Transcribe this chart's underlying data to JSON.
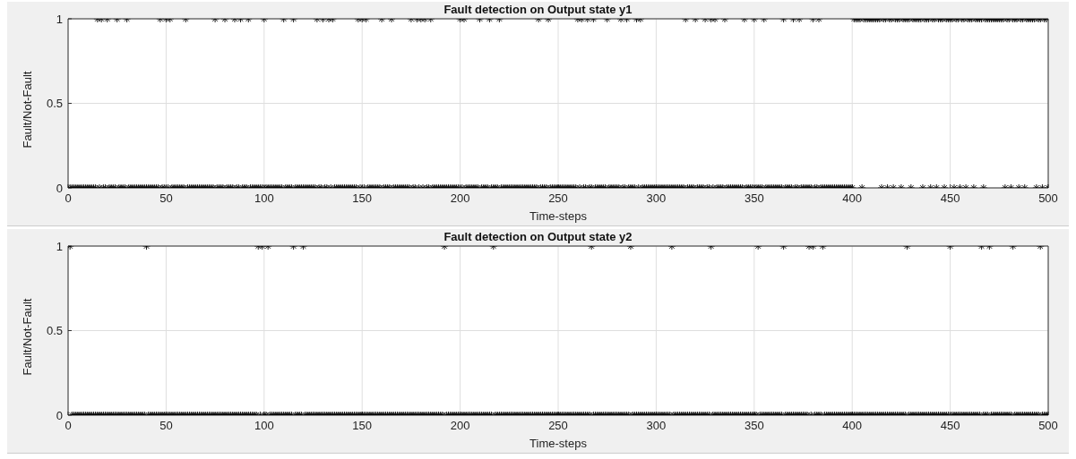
{
  "chart_data": [
    {
      "type": "scatter",
      "title": "Fault detection on Output state y1",
      "xlabel": "Time-steps",
      "ylabel": "Fault/Not-Fault",
      "xlim": [
        0,
        500
      ],
      "ylim": [
        0,
        1
      ],
      "xticks": [
        0,
        50,
        100,
        150,
        200,
        250,
        300,
        350,
        400,
        450,
        500
      ],
      "yticks": [
        0,
        0.5,
        1
      ],
      "grid": true,
      "marker": "cross",
      "x": [
        1,
        2,
        3,
        4,
        5,
        6,
        7,
        8,
        9,
        10,
        11,
        12,
        13,
        14,
        15,
        16,
        17,
        18,
        19,
        20,
        21,
        22,
        23,
        24,
        25,
        26,
        27,
        28,
        29,
        30,
        31,
        32,
        33,
        34,
        35,
        36,
        37,
        38,
        39,
        40,
        41,
        42,
        43,
        44,
        45,
        46,
        47,
        48,
        49,
        50,
        51,
        52,
        53,
        54,
        55,
        56,
        57,
        58,
        59,
        60,
        61,
        62,
        63,
        64,
        65,
        66,
        67,
        68,
        69,
        70,
        71,
        72,
        73,
        74,
        75,
        76,
        77,
        78,
        79,
        80,
        81,
        82,
        83,
        84,
        85,
        86,
        87,
        88,
        89,
        90,
        91,
        92,
        93,
        94,
        95,
        96,
        97,
        98,
        99,
        100,
        101,
        102,
        103,
        104,
        105,
        106,
        107,
        108,
        109,
        110,
        111,
        112,
        113,
        114,
        115,
        116,
        117,
        118,
        119,
        120,
        121,
        122,
        123,
        124,
        125,
        126,
        127,
        128,
        129,
        130,
        131,
        132,
        133,
        134,
        135,
        136,
        137,
        138,
        139,
        140,
        141,
        142,
        143,
        144,
        145,
        146,
        147,
        148,
        149,
        150,
        151,
        152,
        153,
        154,
        155,
        156,
        157,
        158,
        159,
        160,
        161,
        162,
        163,
        164,
        165,
        166,
        167,
        168,
        169,
        170,
        171,
        172,
        173,
        174,
        175,
        176,
        177,
        178,
        179,
        180,
        181,
        182,
        183,
        184,
        185,
        186,
        187,
        188,
        189,
        190,
        191,
        192,
        193,
        194,
        195,
        196,
        197,
        198,
        199,
        200,
        201,
        202,
        203,
        204,
        205,
        206,
        207,
        208,
        209,
        210,
        211,
        212,
        213,
        214,
        215,
        216,
        217,
        218,
        219,
        220,
        221,
        222,
        223,
        224,
        225,
        226,
        227,
        228,
        229,
        230,
        231,
        232,
        233,
        234,
        235,
        236,
        237,
        238,
        239,
        240,
        241,
        242,
        243,
        244,
        245,
        246,
        247,
        248,
        249,
        250,
        251,
        252,
        253,
        254,
        255,
        256,
        257,
        258,
        259,
        260,
        261,
        262,
        263,
        264,
        265,
        266,
        267,
        268,
        269,
        270,
        271,
        272,
        273,
        274,
        275,
        276,
        277,
        278,
        279,
        280,
        281,
        282,
        283,
        284,
        285,
        286,
        287,
        288,
        289,
        290,
        291,
        292,
        293,
        294,
        295,
        296,
        297,
        298,
        299,
        300,
        301,
        302,
        303,
        304,
        305,
        306,
        307,
        308,
        309,
        310,
        311,
        312,
        313,
        314,
        315,
        316,
        317,
        318,
        319,
        320,
        321,
        322,
        323,
        324,
        325,
        326,
        327,
        328,
        329,
        330,
        331,
        332,
        333,
        334,
        335,
        336,
        337,
        338,
        339,
        340,
        341,
        342,
        343,
        344,
        345,
        346,
        347,
        348,
        349,
        350,
        351,
        352,
        353,
        354,
        355,
        356,
        357,
        358,
        359,
        360,
        361,
        362,
        363,
        364,
        365,
        366,
        367,
        368,
        369,
        370,
        371,
        372,
        373,
        374,
        375,
        376,
        377,
        378,
        379,
        380,
        381,
        382,
        383,
        384,
        385,
        386,
        387,
        388,
        389,
        390,
        391,
        392,
        393,
        394,
        395,
        396,
        397,
        398,
        399,
        400,
        401,
        402,
        403,
        404,
        405,
        406,
        407,
        408,
        409,
        410,
        411,
        412,
        413,
        414,
        415,
        416,
        417,
        418,
        419,
        420,
        421,
        422,
        423,
        424,
        425,
        426,
        427,
        428,
        429,
        430,
        431,
        432,
        433,
        434,
        435,
        436,
        437,
        438,
        439,
        440,
        441,
        442,
        443,
        444,
        445,
        446,
        447,
        448,
        449,
        450,
        451,
        452,
        453,
        454,
        455,
        456,
        457,
        458,
        459,
        460,
        461,
        462,
        463,
        464,
        465,
        466,
        467,
        468,
        469,
        470,
        471,
        472,
        473,
        474,
        475,
        476,
        477,
        478,
        479,
        480,
        481,
        482,
        483,
        484,
        485,
        486,
        487,
        488,
        489,
        490,
        491,
        492,
        493,
        494,
        495,
        496,
        497,
        498,
        499,
        500
      ],
      "series": [
        {
          "color": "#000000",
          "values": [
            0,
            0,
            0,
            0,
            0,
            0,
            0,
            0,
            0,
            0,
            0,
            0,
            0,
            0,
            1,
            0,
            1,
            0,
            0,
            1,
            0,
            0,
            0,
            0,
            1,
            0,
            0,
            0,
            0,
            1,
            0,
            0,
            0,
            0,
            0,
            0,
            0,
            0,
            0,
            0,
            0,
            0,
            0,
            0,
            0,
            0,
            1,
            0,
            0,
            1,
            0,
            1,
            0,
            0,
            0,
            0,
            0,
            0,
            0,
            1,
            0,
            0,
            0,
            0,
            0,
            0,
            0,
            0,
            0,
            0,
            0,
            0,
            0,
            0,
            1,
            0,
            0,
            0,
            0,
            1,
            0,
            0,
            0,
            0,
            1,
            0,
            0,
            1,
            0,
            0,
            0,
            1,
            0,
            0,
            0,
            0,
            0,
            0,
            0,
            1,
            0,
            0,
            0,
            0,
            0,
            0,
            0,
            0,
            0,
            1,
            0,
            0,
            0,
            0,
            1,
            0,
            0,
            0,
            0,
            0,
            0,
            0,
            0,
            0,
            0,
            0,
            1,
            0,
            0,
            1,
            0,
            0,
            1,
            0,
            1,
            0,
            0,
            0,
            0,
            0,
            0,
            0,
            0,
            0,
            0,
            0,
            0,
            1,
            0,
            1,
            0,
            1,
            0,
            0,
            0,
            0,
            0,
            0,
            0,
            1,
            0,
            0,
            0,
            0,
            1,
            0,
            0,
            0,
            0,
            0,
            0,
            0,
            0,
            0,
            1,
            0,
            0,
            1,
            0,
            1,
            0,
            1,
            0,
            0,
            1,
            0,
            0,
            0,
            0,
            0,
            0,
            0,
            0,
            0,
            0,
            0,
            0,
            0,
            0,
            1,
            0,
            1,
            0,
            0,
            0,
            0,
            0,
            0,
            0,
            1,
            0,
            0,
            0,
            0,
            1,
            0,
            0,
            0,
            0,
            1,
            0,
            0,
            0,
            0,
            0,
            0,
            0,
            0,
            0,
            0,
            0,
            0,
            0,
            0,
            0,
            0,
            0,
            0,
            0,
            1,
            0,
            0,
            0,
            0,
            1,
            0,
            0,
            0,
            0,
            0,
            0,
            0,
            0,
            0,
            0,
            0,
            0,
            0,
            0,
            1,
            0,
            1,
            0,
            0,
            1,
            0,
            0,
            1,
            0,
            0,
            0,
            0,
            0,
            0,
            1,
            0,
            0,
            0,
            0,
            0,
            0,
            1,
            0,
            0,
            1,
            0,
            0,
            0,
            0,
            1,
            0,
            1,
            0,
            0,
            0,
            0,
            0,
            0,
            0,
            0,
            0,
            0,
            0,
            0,
            0,
            0,
            0,
            0,
            0,
            0,
            0,
            0,
            0,
            0,
            1,
            0,
            0,
            0,
            0,
            1,
            0,
            0,
            0,
            0,
            1,
            0,
            0,
            1,
            0,
            1,
            0,
            0,
            0,
            0,
            1,
            0,
            0,
            0,
            0,
            0,
            0,
            0,
            0,
            0,
            1,
            0,
            0,
            0,
            0,
            1,
            0,
            0,
            0,
            0,
            1,
            0,
            0,
            0,
            0,
            0,
            0,
            0,
            0,
            0,
            1,
            0,
            0,
            0,
            0,
            1,
            0,
            0,
            1,
            0,
            0,
            0,
            0,
            0,
            0,
            1,
            0,
            0,
            1,
            0,
            0,
            0,
            0,
            0,
            0,
            0,
            0,
            0,
            0,
            0,
            0,
            0,
            0,
            0,
            0,
            0,
            1,
            1,
            1,
            1,
            0,
            1,
            1,
            1,
            1,
            1,
            1,
            1,
            1,
            1,
            0,
            1,
            1,
            0,
            1,
            1,
            0,
            1,
            1,
            1,
            0,
            1,
            1,
            1,
            1,
            0,
            1,
            1,
            1,
            1,
            1,
            0,
            1,
            1,
            1,
            0,
            1,
            1,
            0,
            1,
            1,
            1,
            0,
            1,
            1,
            1,
            1,
            0,
            1,
            1,
            0,
            1,
            1,
            0,
            1,
            1,
            1,
            0,
            1,
            1,
            1,
            1,
            0,
            1,
            1,
            1,
            1,
            1,
            1,
            1,
            1,
            1,
            1,
            0,
            1,
            1,
            0,
            1,
            1,
            1,
            0,
            1,
            1,
            0,
            1,
            1,
            1,
            1,
            1,
            0,
            1,
            1,
            0,
            1,
            1,
            0
          ]
        }
      ]
    },
    {
      "type": "scatter",
      "title": "Fault detection on Output state y2",
      "xlabel": "Time-steps",
      "ylabel": "Fault/Not-Fault",
      "xlim": [
        0,
        500
      ],
      "ylim": [
        0,
        1
      ],
      "xticks": [
        0,
        50,
        100,
        150,
        200,
        250,
        300,
        350,
        400,
        450,
        500
      ],
      "yticks": [
        0,
        0.5,
        1
      ],
      "grid": true,
      "marker": "cross",
      "x": [
        1,
        2,
        3,
        4,
        5,
        6,
        7,
        8,
        9,
        10,
        11,
        12,
        13,
        14,
        15,
        16,
        17,
        18,
        19,
        20,
        21,
        22,
        23,
        24,
        25,
        26,
        27,
        28,
        29,
        30,
        31,
        32,
        33,
        34,
        35,
        36,
        37,
        38,
        39,
        40,
        41,
        42,
        43,
        44,
        45,
        46,
        47,
        48,
        49,
        50,
        51,
        52,
        53,
        54,
        55,
        56,
        57,
        58,
        59,
        60,
        61,
        62,
        63,
        64,
        65,
        66,
        67,
        68,
        69,
        70,
        71,
        72,
        73,
        74,
        75,
        76,
        77,
        78,
        79,
        80,
        81,
        82,
        83,
        84,
        85,
        86,
        87,
        88,
        89,
        90,
        91,
        92,
        93,
        94,
        95,
        96,
        97,
        98,
        99,
        100,
        101,
        102,
        103,
        104,
        105,
        106,
        107,
        108,
        109,
        110,
        111,
        112,
        113,
        114,
        115,
        116,
        117,
        118,
        119,
        120,
        121,
        122,
        123,
        124,
        125,
        126,
        127,
        128,
        129,
        130,
        131,
        132,
        133,
        134,
        135,
        136,
        137,
        138,
        139,
        140,
        141,
        142,
        143,
        144,
        145,
        146,
        147,
        148,
        149,
        150,
        151,
        152,
        153,
        154,
        155,
        156,
        157,
        158,
        159,
        160,
        161,
        162,
        163,
        164,
        165,
        166,
        167,
        168,
        169,
        170,
        171,
        172,
        173,
        174,
        175,
        176,
        177,
        178,
        179,
        180,
        181,
        182,
        183,
        184,
        185,
        186,
        187,
        188,
        189,
        190,
        191,
        192,
        193,
        194,
        195,
        196,
        197,
        198,
        199,
        200,
        201,
        202,
        203,
        204,
        205,
        206,
        207,
        208,
        209,
        210,
        211,
        212,
        213,
        214,
        215,
        216,
        217,
        218,
        219,
        220,
        221,
        222,
        223,
        224,
        225,
        226,
        227,
        228,
        229,
        230,
        231,
        232,
        233,
        234,
        235,
        236,
        237,
        238,
        239,
        240,
        241,
        242,
        243,
        244,
        245,
        246,
        247,
        248,
        249,
        250,
        251,
        252,
        253,
        254,
        255,
        256,
        257,
        258,
        259,
        260,
        261,
        262,
        263,
        264,
        265,
        266,
        267,
        268,
        269,
        270,
        271,
        272,
        273,
        274,
        275,
        276,
        277,
        278,
        279,
        280,
        281,
        282,
        283,
        284,
        285,
        286,
        287,
        288,
        289,
        290,
        291,
        292,
        293,
        294,
        295,
        296,
        297,
        298,
        299,
        300,
        301,
        302,
        303,
        304,
        305,
        306,
        307,
        308,
        309,
        310,
        311,
        312,
        313,
        314,
        315,
        316,
        317,
        318,
        319,
        320,
        321,
        322,
        323,
        324,
        325,
        326,
        327,
        328,
        329,
        330,
        331,
        332,
        333,
        334,
        335,
        336,
        337,
        338,
        339,
        340,
        341,
        342,
        343,
        344,
        345,
        346,
        347,
        348,
        349,
        350,
        351,
        352,
        353,
        354,
        355,
        356,
        357,
        358,
        359,
        360,
        361,
        362,
        363,
        364,
        365,
        366,
        367,
        368,
        369,
        370,
        371,
        372,
        373,
        374,
        375,
        376,
        377,
        378,
        379,
        380,
        381,
        382,
        383,
        384,
        385,
        386,
        387,
        388,
        389,
        390,
        391,
        392,
        393,
        394,
        395,
        396,
        397,
        398,
        399,
        400,
        401,
        402,
        403,
        404,
        405,
        406,
        407,
        408,
        409,
        410,
        411,
        412,
        413,
        414,
        415,
        416,
        417,
        418,
        419,
        420,
        421,
        422,
        423,
        424,
        425,
        426,
        427,
        428,
        429,
        430,
        431,
        432,
        433,
        434,
        435,
        436,
        437,
        438,
        439,
        440,
        441,
        442,
        443,
        444,
        445,
        446,
        447,
        448,
        449,
        450,
        451,
        452,
        453,
        454,
        455,
        456,
        457,
        458,
        459,
        460,
        461,
        462,
        463,
        464,
        465,
        466,
        467,
        468,
        469,
        470,
        471,
        472,
        473,
        474,
        475,
        476,
        477,
        478,
        479,
        480,
        481,
        482,
        483,
        484,
        485,
        486,
        487,
        488,
        489,
        490,
        491,
        492,
        493,
        494,
        495,
        496,
        497,
        498,
        499,
        500
      ],
      "series": [
        {
          "color": "#000000",
          "values": [
            1,
            0,
            0,
            0,
            0,
            0,
            0,
            0,
            0,
            0,
            0,
            0,
            0,
            0,
            0,
            0,
            0,
            0,
            0,
            0,
            0,
            0,
            0,
            0,
            0,
            0,
            0,
            0,
            0,
            0,
            0,
            0,
            0,
            0,
            0,
            0,
            0,
            0,
            0,
            1,
            0,
            0,
            0,
            0,
            0,
            0,
            0,
            0,
            0,
            0,
            0,
            0,
            0,
            0,
            0,
            0,
            0,
            0,
            0,
            0,
            0,
            0,
            0,
            0,
            0,
            0,
            0,
            0,
            0,
            0,
            0,
            0,
            0,
            0,
            0,
            0,
            0,
            0,
            0,
            0,
            0,
            0,
            0,
            0,
            0,
            0,
            0,
            0,
            0,
            0,
            0,
            0,
            0,
            0,
            0,
            0,
            1,
            0,
            1,
            0,
            0,
            1,
            0,
            0,
            0,
            0,
            0,
            0,
            0,
            0,
            0,
            0,
            0,
            0,
            1,
            0,
            0,
            0,
            0,
            1,
            0,
            0,
            0,
            0,
            0,
            0,
            0,
            0,
            0,
            0,
            0,
            0,
            0,
            0,
            0,
            0,
            0,
            0,
            0,
            0,
            0,
            0,
            0,
            0,
            0,
            0,
            0,
            0,
            0,
            0,
            0,
            0,
            0,
            0,
            0,
            0,
            0,
            0,
            0,
            0,
            0,
            0,
            0,
            0,
            0,
            0,
            0,
            0,
            0,
            0,
            0,
            0,
            0,
            0,
            0,
            0,
            0,
            0,
            0,
            0,
            0,
            0,
            0,
            0,
            0,
            0,
            0,
            0,
            0,
            0,
            0,
            1,
            0,
            0,
            0,
            0,
            0,
            0,
            0,
            0,
            0,
            0,
            0,
            0,
            0,
            0,
            0,
            0,
            0,
            0,
            0,
            0,
            0,
            0,
            0,
            0,
            1,
            0,
            0,
            0,
            0,
            0,
            0,
            0,
            0,
            0,
            0,
            0,
            0,
            0,
            0,
            0,
            0,
            0,
            0,
            0,
            0,
            0,
            0,
            0,
            0,
            0,
            0,
            0,
            0,
            0,
            0,
            0,
            0,
            0,
            0,
            0,
            0,
            0,
            0,
            0,
            0,
            0,
            0,
            0,
            0,
            0,
            0,
            0,
            0,
            0,
            1,
            0,
            0,
            0,
            0,
            0,
            0,
            0,
            0,
            0,
            0,
            0,
            0,
            0,
            0,
            0,
            0,
            0,
            0,
            0,
            1,
            0,
            0,
            0,
            0,
            0,
            0,
            0,
            0,
            0,
            0,
            0,
            0,
            0,
            0,
            0,
            0,
            0,
            0,
            0,
            0,
            1,
            0,
            0,
            0,
            0,
            0,
            0,
            0,
            0,
            0,
            0,
            0,
            0,
            0,
            0,
            0,
            0,
            0,
            0,
            0,
            1,
            0,
            0,
            0,
            0,
            0,
            0,
            0,
            0,
            0,
            0,
            0,
            0,
            0,
            0,
            0,
            0,
            0,
            0,
            0,
            0,
            0,
            0,
            0,
            1,
            0,
            0,
            0,
            0,
            0,
            0,
            0,
            0,
            0,
            0,
            0,
            0,
            1,
            0,
            0,
            0,
            0,
            0,
            0,
            0,
            0,
            0,
            0,
            0,
            0,
            1,
            0,
            1,
            0,
            0,
            0,
            0,
            1,
            0,
            0,
            0,
            0,
            0,
            0,
            0,
            0,
            0,
            0,
            0,
            0,
            0,
            0,
            0,
            0,
            0,
            0,
            0,
            0,
            0,
            0,
            0,
            0,
            0,
            0,
            0,
            0,
            0,
            0,
            0,
            0,
            0,
            0,
            0,
            0,
            0,
            0,
            0,
            0,
            0,
            0,
            1,
            0,
            0,
            0,
            0,
            0,
            0,
            0,
            0,
            0,
            0,
            0,
            0,
            0,
            0,
            0,
            0,
            0,
            0,
            0,
            0,
            0,
            1,
            0,
            0,
            0,
            0,
            0,
            0,
            0,
            0,
            0,
            0,
            0,
            0,
            0,
            0,
            0,
            1,
            0,
            0,
            0,
            1,
            0,
            0,
            0,
            0,
            0,
            0,
            0,
            0,
            0,
            0,
            0,
            1,
            0,
            0,
            0,
            0,
            0,
            0,
            0,
            0,
            0,
            0,
            0,
            0,
            0,
            1,
            0,
            0,
            0,
            0
          ]
        }
      ]
    }
  ]
}
